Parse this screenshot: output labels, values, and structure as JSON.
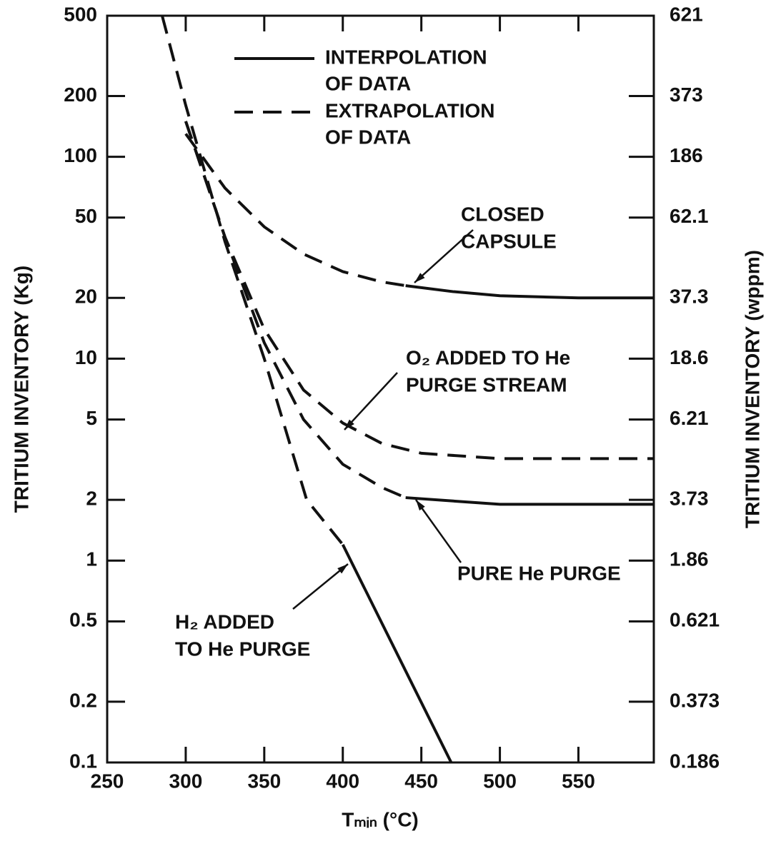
{
  "chart_data": {
    "type": "line",
    "x_label": "Tₘᵢₙ (°C)",
    "y_label": "TRITIUM INVENTORY (Kg)",
    "y2_label": "TRITIUM INVENTORY (wppm)",
    "xlim": [
      250,
      598
    ],
    "xticks": [
      250,
      300,
      350,
      400,
      450,
      500,
      550
    ],
    "ylim": [
      0.1,
      500
    ],
    "log_y": true,
    "yticks": [
      500,
      200,
      100,
      50,
      20,
      10,
      5,
      2,
      1,
      0.5,
      0.2,
      0.1
    ],
    "y2ticks": [
      621,
      373,
      186,
      62.1,
      37.3,
      18.6,
      6.21,
      3.73,
      1.86,
      0.621,
      0.373,
      0.186
    ],
    "color": "#111111",
    "legend": [
      {
        "label": [
          "INTERPOLATION",
          "OF DATA"
        ],
        "style": "solid"
      },
      {
        "label": [
          "EXTRAPOLATION",
          "OF DATA"
        ],
        "style": "dashed"
      }
    ],
    "series": [
      {
        "name": [
          "CLOSED",
          "CAPSULE"
        ],
        "dashed": {
          "x": [
            300,
            325,
            350,
            375,
            400,
            425,
            440
          ],
          "values": [
            130,
            70,
            45,
            33,
            27,
            24,
            23
          ]
        },
        "solid": {
          "x": [
            440,
            470,
            500,
            550,
            598
          ],
          "values": [
            23,
            21.5,
            20.5,
            20,
            20
          ]
        }
      },
      {
        "name": [
          "O₂ ADDED TO He",
          "PURGE STREAM"
        ],
        "dashed": {
          "x": [
            300,
            325,
            350,
            375,
            400,
            425,
            450,
            500,
            598
          ],
          "values": [
            150,
            40,
            14,
            7,
            4.8,
            3.8,
            3.4,
            3.2,
            3.2
          ]
        }
      },
      {
        "name": [
          "PURE He PURGE"
        ],
        "dashed": {
          "x": [
            300,
            325,
            350,
            375,
            400,
            425,
            440
          ],
          "values": [
            150,
            40,
            12,
            5,
            3,
            2.3,
            2.05
          ]
        },
        "solid": {
          "x": [
            440,
            500,
            598
          ],
          "values": [
            2.05,
            1.9,
            1.9
          ]
        }
      },
      {
        "name": [
          "H₂ ADDED",
          "TO He PURGE"
        ],
        "dashed": {
          "x": [
            285,
            300,
            325,
            350,
            377,
            400
          ],
          "values": [
            500,
            180,
            38,
            10,
            2,
            1.2
          ]
        },
        "solid": {
          "x": [
            400,
            469
          ],
          "values": [
            1.2,
            0.1
          ]
        }
      }
    ]
  }
}
